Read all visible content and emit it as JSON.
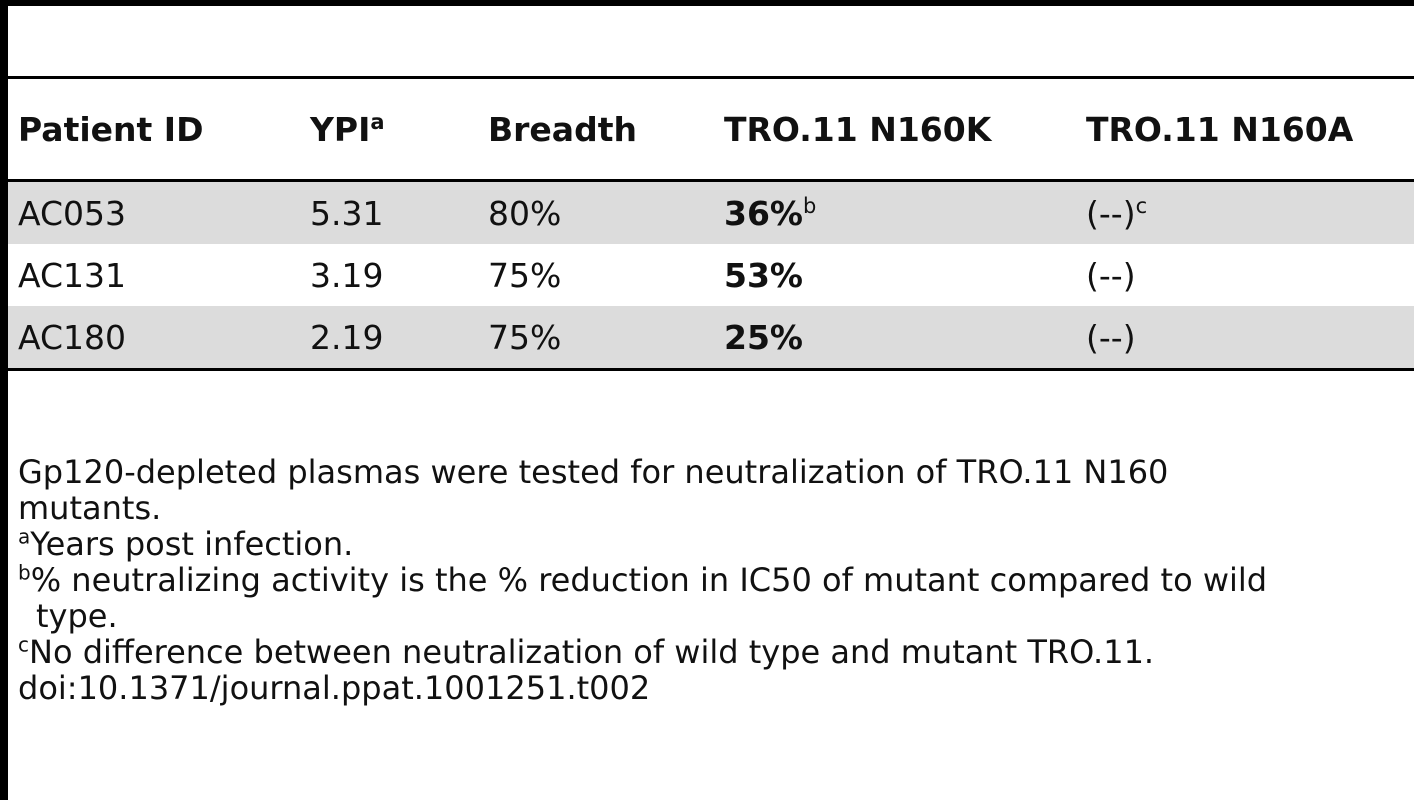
{
  "table": {
    "headers": [
      {
        "text": "Patient ID",
        "sup": ""
      },
      {
        "text": "YPI",
        "sup": "a"
      },
      {
        "text": "Breadth",
        "sup": ""
      },
      {
        "text": "TRO.11 N160K",
        "sup": ""
      },
      {
        "text": "TRO.11 N160A",
        "sup": ""
      }
    ],
    "rows": [
      {
        "patient": "AC053",
        "ypi": "5.31",
        "breadth": "80%",
        "n160k": "36%",
        "n160k_sup": "b",
        "n160a": "(--)",
        "n160a_sup": "c"
      },
      {
        "patient": "AC131",
        "ypi": "3.19",
        "breadth": "75%",
        "n160k": "53%",
        "n160k_sup": "",
        "n160a": "(--)",
        "n160a_sup": ""
      },
      {
        "patient": "AC180",
        "ypi": "2.19",
        "breadth": "75%",
        "n160k": "25%",
        "n160k_sup": "",
        "n160a": "(--)",
        "n160a_sup": ""
      }
    ]
  },
  "footnotes": {
    "caption_line1": "Gp120-depleted plasmas were tested for neutralization of TRO.11 N160",
    "caption_line2": "mutants.",
    "a_mark": "a",
    "a_text": "Years post infection.",
    "b_mark": "b",
    "b_text_line1": "% neutralizing activity is the % reduction in IC50 of mutant compared to wild",
    "b_text_line2": "type.",
    "c_mark": "c",
    "c_text": "No difference between neutralization of wild type and mutant TRO.11.",
    "doi": "doi:10.1371/journal.ppat.1001251.t002"
  }
}
